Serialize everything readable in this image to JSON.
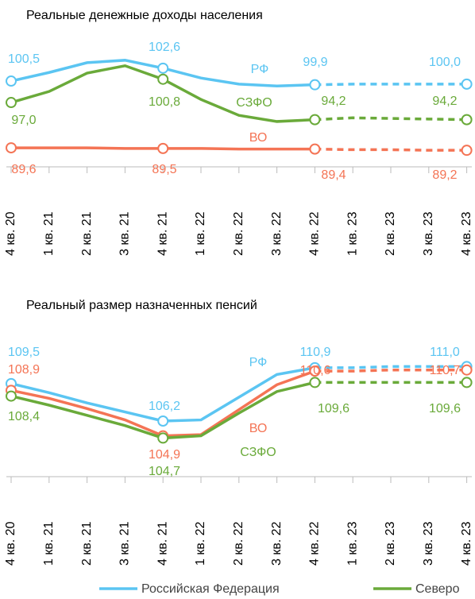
{
  "chart_data": [
    {
      "type": "line",
      "title": "Реальные денежные доходы населения",
      "categories": [
        "4 кв. 20",
        "1 кв. 21",
        "2 кв. 21",
        "3 кв. 21",
        "4 кв. 21",
        "1 кв. 22",
        "2 кв. 22",
        "3 кв. 22",
        "4 кв. 22",
        "1 кв. 23",
        "2 кв. 23",
        "3 кв. 23",
        "4 кв. 23"
      ],
      "forecast_from": "4 кв. 22",
      "ylim": [
        86.5,
        106.6
      ],
      "series": [
        {
          "name": "Российская Федерация",
          "short_name": "РФ",
          "color": "#5bc5f2",
          "values": [
            100.5,
            101.9,
            103.5,
            103.9,
            102.6,
            101.0,
            100.0,
            99.7,
            99.9,
            100.0,
            100.0,
            100.0,
            100.0
          ],
          "value_labels": [
            "100,5",
            null,
            null,
            null,
            "102,6",
            null,
            null,
            null,
            "99,9",
            null,
            null,
            null,
            "100,0"
          ]
        },
        {
          "name": "Северо",
          "short_name": "СЗФО",
          "color": "#6aaa3a",
          "values": [
            97.0,
            98.8,
            101.8,
            103.0,
            100.8,
            97.5,
            94.9,
            93.9,
            94.2,
            94.5,
            94.4,
            94.3,
            94.2
          ],
          "value_labels": [
            "97,0",
            null,
            null,
            null,
            "100,8",
            null,
            null,
            null,
            "94,2",
            null,
            null,
            null,
            "94,2"
          ]
        },
        {
          "name": "ВО",
          "short_name": "ВО",
          "color": "#f47455",
          "values": [
            89.6,
            89.6,
            89.6,
            89.5,
            89.5,
            89.5,
            89.4,
            89.4,
            89.4,
            89.3,
            89.3,
            89.2,
            89.2
          ],
          "value_labels": [
            "89,6",
            null,
            null,
            null,
            "89,5",
            null,
            null,
            null,
            "89,4",
            null,
            null,
            null,
            "89,2"
          ]
        }
      ]
    },
    {
      "type": "line",
      "title": "Реальный размер назначенных пенсий",
      "categories": [
        "4 кв. 20",
        "1 кв. 21",
        "2 кв. 21",
        "3 кв. 21",
        "4 кв. 21",
        "1 кв. 22",
        "2 кв. 22",
        "3 кв. 22",
        "4 кв. 22",
        "1 кв. 23",
        "2 кв. 23",
        "3 кв. 23",
        "4 кв. 23"
      ],
      "forecast_from": "4 кв. 22",
      "ylim": [
        101.3,
        112.5
      ],
      "series": [
        {
          "name": "Российская Федерация",
          "short_name": "РФ",
          "color": "#5bc5f2",
          "values": [
            109.5,
            108.7,
            107.8,
            107.0,
            106.2,
            106.3,
            108.3,
            110.3,
            110.9,
            110.9,
            111.0,
            111.0,
            111.0
          ],
          "value_labels": [
            "109,5",
            null,
            null,
            null,
            "106,2",
            null,
            null,
            null,
            "110,9",
            null,
            null,
            null,
            "111,0"
          ]
        },
        {
          "name": "ВО",
          "short_name": "ВО",
          "color": "#f47455",
          "values": [
            108.9,
            108.2,
            107.3,
            106.3,
            104.9,
            105.0,
            107.2,
            109.4,
            110.6,
            110.6,
            110.7,
            110.7,
            110.7
          ],
          "value_labels": [
            "108,9",
            null,
            null,
            null,
            "104,9",
            null,
            null,
            null,
            "110,6",
            null,
            null,
            null,
            "110,7"
          ]
        },
        {
          "name": "Северо",
          "short_name": "СЗФО",
          "color": "#6aaa3a",
          "values": [
            108.4,
            107.6,
            106.7,
            105.8,
            104.7,
            104.9,
            106.9,
            108.8,
            109.6,
            109.6,
            109.6,
            109.6,
            109.6
          ],
          "value_labels": [
            "108,4",
            null,
            null,
            null,
            "104,7",
            null,
            null,
            null,
            "109,6",
            null,
            null,
            null,
            "109,6"
          ]
        }
      ]
    }
  ]
}
